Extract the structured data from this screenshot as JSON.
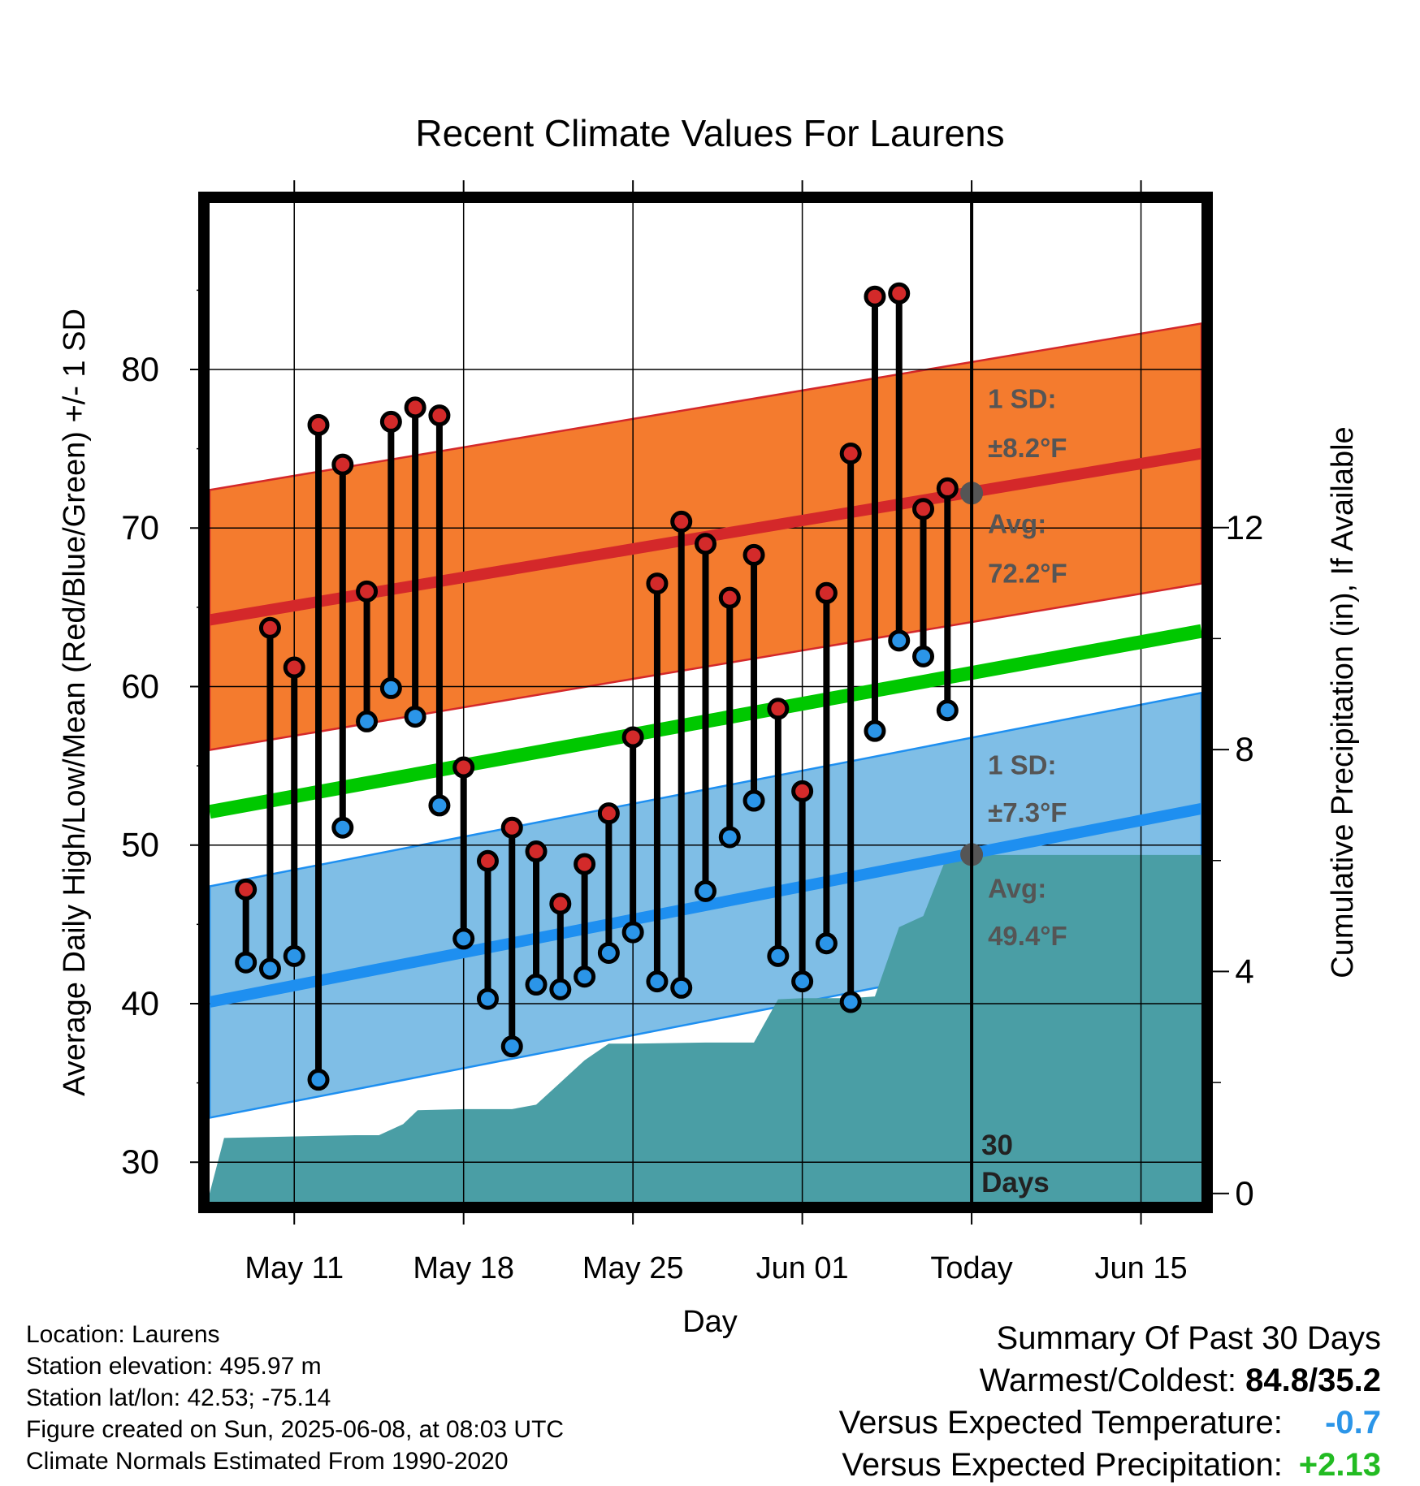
{
  "chart_data": {
    "type": "line",
    "title": "Recent Climate Values For Laurens",
    "xlabel": "Day",
    "ylabel": "Average Daily High/Low/Mean (Red/Blue/Green) +/- 1 SD",
    "y2label": "Cumulative Precipitation (in), If Available",
    "x_axis": {
      "range_days": [
        -31.5,
        9.5
      ],
      "ticks": [
        {
          "day": -28,
          "label": "May 11"
        },
        {
          "day": -21,
          "label": "May 18"
        },
        {
          "day": -14,
          "label": "May 25"
        },
        {
          "day": -7,
          "label": "Jun 01"
        },
        {
          "day": 0,
          "label": "Today"
        },
        {
          "day": 7,
          "label": "Jun 15"
        }
      ]
    },
    "y_axis": {
      "range": [
        27.5,
        90.5
      ],
      "ticks": [
        30,
        40,
        50,
        60,
        70,
        80
      ]
    },
    "y2_axis": {
      "range": [
        -0.15,
        17.85
      ],
      "ticks": [
        0,
        4,
        8,
        12
      ]
    },
    "grid": true,
    "today_line": {
      "day": 0,
      "label": "30 Days"
    },
    "normals": {
      "high": {
        "start": 64.2,
        "end": 74.7,
        "sd": 8.2
      },
      "low": {
        "start": 40.1,
        "end": 52.3,
        "sd": 7.3
      },
      "mean": {
        "start": 52.1,
        "end": 63.5
      }
    },
    "annotations": {
      "high_sd": "1 SD:",
      "high_sd_val": "±8.2°F",
      "high_avg": "Avg:",
      "high_avg_val": "72.2°F",
      "low_sd": "1 SD:",
      "low_sd_val": "±7.3°F",
      "low_avg": "Avg:",
      "low_avg_val": "49.4°F"
    },
    "today_markers": [
      {
        "series": "high",
        "value": 72.2
      },
      {
        "series": "low",
        "value": 49.4
      }
    ],
    "days": [
      {
        "day": -30,
        "high": 47.2,
        "low": 42.6
      },
      {
        "day": -29,
        "high": 63.7,
        "low": 42.2
      },
      {
        "day": -28,
        "high": 61.2,
        "low": 43.0
      },
      {
        "day": -27,
        "high": 76.5,
        "low": 35.2
      },
      {
        "day": -26,
        "high": 74.0,
        "low": 51.1
      },
      {
        "day": -25,
        "high": 66.0,
        "low": 57.8
      },
      {
        "day": -24,
        "high": 76.7,
        "low": 59.9
      },
      {
        "day": -23,
        "high": 77.6,
        "low": 58.1
      },
      {
        "day": -22,
        "high": 77.1,
        "low": 52.5
      },
      {
        "day": -21,
        "high": 54.9,
        "low": 44.1
      },
      {
        "day": -20,
        "high": 49.0,
        "low": 40.3
      },
      {
        "day": -19,
        "high": 51.1,
        "low": 37.3
      },
      {
        "day": -18,
        "high": 49.6,
        "low": 41.2
      },
      {
        "day": -17,
        "high": 46.3,
        "low": 40.9
      },
      {
        "day": -16,
        "high": 48.8,
        "low": 41.7
      },
      {
        "day": -15,
        "high": 52.0,
        "low": 43.2
      },
      {
        "day": -14,
        "high": 56.8,
        "low": 44.5
      },
      {
        "day": -13,
        "high": 66.5,
        "low": 41.4
      },
      {
        "day": -12,
        "high": 70.4,
        "low": 41.0
      },
      {
        "day": -11,
        "high": 69.0,
        "low": 47.1
      },
      {
        "day": -10,
        "high": 65.6,
        "low": 50.5
      },
      {
        "day": -9,
        "high": 68.3,
        "low": 52.8
      },
      {
        "day": -8,
        "high": 58.6,
        "low": 43.0
      },
      {
        "day": -7,
        "high": 53.4,
        "low": 41.4
      },
      {
        "day": -6,
        "high": 65.9,
        "low": 43.8
      },
      {
        "day": -5,
        "high": 74.7,
        "low": 40.1
      },
      {
        "day": -4,
        "high": 84.6,
        "low": 57.2
      },
      {
        "day": -3,
        "high": 84.8,
        "low": 62.9
      },
      {
        "day": -2,
        "high": 71.2,
        "low": 61.9
      },
      {
        "day": -1,
        "high": 72.5,
        "low": 58.5
      }
    ],
    "precipitation_cumulative": [
      [
        -31.5,
        0
      ],
      [
        -30.9,
        1.0
      ],
      [
        -25.5,
        1.05
      ],
      [
        -24.5,
        1.05
      ],
      [
        -23.5,
        1.25
      ],
      [
        -22.9,
        1.5
      ],
      [
        -21.0,
        1.52
      ],
      [
        -19.0,
        1.52
      ],
      [
        -18.0,
        1.6
      ],
      [
        -17.0,
        2.0
      ],
      [
        -16.0,
        2.4
      ],
      [
        -15.0,
        2.7
      ],
      [
        -14.0,
        2.7
      ],
      [
        -11.0,
        2.72
      ],
      [
        -9.0,
        2.72
      ],
      [
        -8.0,
        3.5
      ],
      [
        -7.0,
        3.52
      ],
      [
        -5.0,
        3.52
      ],
      [
        -4.0,
        3.55
      ],
      [
        -3.0,
        4.8
      ],
      [
        -2.0,
        5.0
      ],
      [
        -1.0,
        6.1
      ],
      [
        9.5,
        6.1
      ]
    ],
    "colors": {
      "high_band": "#f47b2e",
      "high_mean": "#d4282a",
      "low_band": "#7fbee6",
      "low_mean": "#1e8ff0",
      "mean": "#00c800",
      "precip": "#4a9ea5",
      "high_marker": "#d32a2a",
      "low_marker": "#2b95e8",
      "annotation": "#555555"
    }
  },
  "info": {
    "location": "Location: Laurens",
    "elevation": "Station elevation: 495.97 m",
    "latlon": "Station lat/lon: 42.53; -75.14",
    "created": "Figure created on Sun, 2025-06-08, at 08:03 UTC",
    "normals": "Climate Normals Estimated From 1990-2020"
  },
  "summary": {
    "title": "Summary Of Past 30 Days",
    "warmest_label": "Warmest/Coldest:",
    "warmest_value": "84.8/35.2",
    "temp_label": "Versus Expected Temperature:",
    "temp_value": "-0.7",
    "temp_color": "#2b95e8",
    "precip_label": "Versus Expected Precipitation:",
    "precip_value": "+2.13",
    "precip_color": "#22bb22"
  }
}
